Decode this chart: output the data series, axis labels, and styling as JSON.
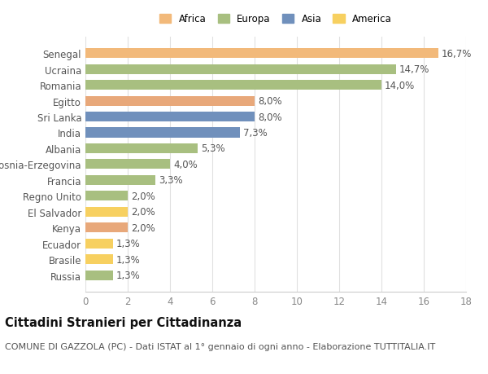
{
  "categories": [
    "Russia",
    "Brasile",
    "Ecuador",
    "Kenya",
    "El Salvador",
    "Regno Unito",
    "Francia",
    "Bosnia-Erzegovina",
    "Albania",
    "India",
    "Sri Lanka",
    "Egitto",
    "Romania",
    "Ucraina",
    "Senegal"
  ],
  "values": [
    1.3,
    1.3,
    1.3,
    2.0,
    2.0,
    2.0,
    3.3,
    4.0,
    5.3,
    7.3,
    8.0,
    8.0,
    14.0,
    14.7,
    16.7
  ],
  "colors": [
    "#a8bf80",
    "#f7d060",
    "#f7d060",
    "#e8a87a",
    "#f7d060",
    "#a8bf80",
    "#a8bf80",
    "#a8bf80",
    "#a8bf80",
    "#7090bc",
    "#7090bc",
    "#e8a87a",
    "#a8bf80",
    "#a8bf80",
    "#f2b97a"
  ],
  "legend_labels": [
    "Africa",
    "Europa",
    "Asia",
    "America"
  ],
  "legend_colors": [
    "#f2b97a",
    "#a8bf80",
    "#7090bc",
    "#f7d060"
  ],
  "title": "Cittadini Stranieri per Cittadinanza",
  "subtitle": "COMUNE DI GAZZOLA (PC) - Dati ISTAT al 1° gennaio di ogni anno - Elaborazione TUTTITALIA.IT",
  "xlim": [
    0,
    18
  ],
  "xticks": [
    0,
    2,
    4,
    6,
    8,
    10,
    12,
    14,
    16,
    18
  ],
  "background_color": "#ffffff",
  "grid_color": "#e0e0e0",
  "label_fontsize": 8.5,
  "ylabel_fontsize": 8.5,
  "title_fontsize": 10.5,
  "subtitle_fontsize": 8
}
